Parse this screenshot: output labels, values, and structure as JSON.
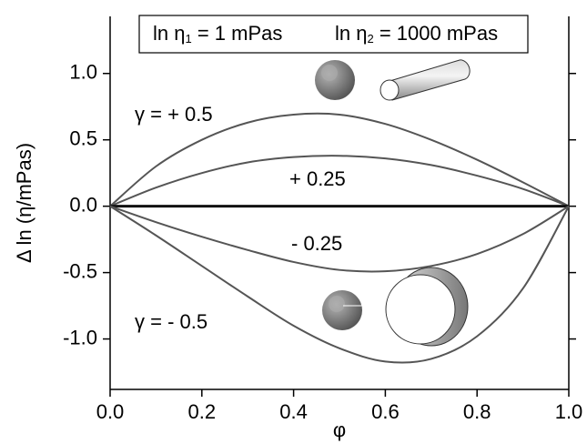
{
  "chart_data": {
    "type": "line",
    "x_label": "φ",
    "y_label": "Δ ln (η/mPas)",
    "annotation": [
      {
        "text": "ln η",
        "sub": "1",
        "rest": " = 1 mPas"
      },
      {
        "text": "ln η",
        "sub": "2",
        "rest": " = 1000 mPas"
      }
    ],
    "x": [
      0,
      0.1,
      0.2,
      0.3,
      0.4,
      0.5,
      0.6,
      0.7,
      0.8,
      0.9,
      1.0
    ],
    "series": [
      {
        "name": "γ = + 0.5",
        "color": "#555555",
        "values": [
          0,
          0.3,
          0.5,
          0.63,
          0.69,
          0.69,
          0.62,
          0.5,
          0.35,
          0.18,
          0
        ]
      },
      {
        "name": "+ 0.25",
        "color": "#555555",
        "values": [
          0,
          0.14,
          0.25,
          0.33,
          0.37,
          0.38,
          0.36,
          0.31,
          0.23,
          0.13,
          0
        ]
      },
      {
        "color": "#111111",
        "values": [
          0,
          0,
          0,
          0,
          0,
          0,
          0,
          0,
          0,
          0,
          0
        ]
      },
      {
        "name": "- 0.25",
        "color": "#555555",
        "values": [
          0,
          -0.12,
          -0.23,
          -0.33,
          -0.42,
          -0.48,
          -0.49,
          -0.45,
          -0.36,
          -0.21,
          0
        ]
      },
      {
        "name": "γ = - 0.5",
        "color": "#555555",
        "values": [
          0,
          -0.22,
          -0.45,
          -0.68,
          -0.9,
          -1.07,
          -1.17,
          -1.15,
          -0.98,
          -0.62,
          0
        ]
      }
    ],
    "xlim": [
      0,
      1.0
    ],
    "xticks": [
      {
        "value": 0,
        "label": "0.0"
      },
      {
        "value": 0.2,
        "label": "0.2"
      },
      {
        "value": 0.4,
        "label": "0.4"
      },
      {
        "value": 0.6,
        "label": "0.6"
      },
      {
        "value": 0.8,
        "label": "0.8"
      },
      {
        "value": 1.0,
        "label": "1.0"
      }
    ],
    "ylim": [
      -1.38,
      1.43
    ],
    "yticks": [
      {
        "value": -1.0,
        "label": "-1.0"
      },
      {
        "value": -0.5,
        "label": "-0.5"
      },
      {
        "value": 0,
        "label": "0.0"
      },
      {
        "value": 0.5,
        "label": "0.5"
      },
      {
        "value": 1.0,
        "label": "1.0"
      }
    ],
    "grid": false
  }
}
